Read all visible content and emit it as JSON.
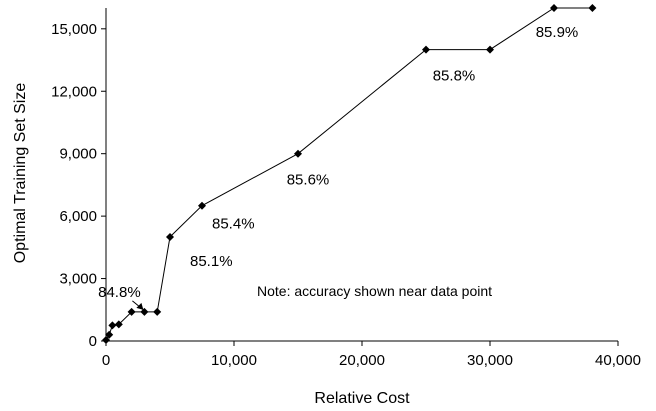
{
  "chart_data": {
    "type": "line",
    "xlabel": "Relative Cost",
    "ylabel": "Optimal Training Set Size",
    "xlim": [
      0,
      40000
    ],
    "ylim": [
      0,
      16000
    ],
    "x_ticks": [
      0,
      10000,
      20000,
      30000,
      40000
    ],
    "x_tick_labels": [
      "0",
      "10,000",
      "20,000",
      "30,000",
      "40,000"
    ],
    "y_ticks": [
      0,
      3000,
      6000,
      9000,
      12000,
      15000
    ],
    "y_tick_labels": [
      "0",
      "3,000",
      "6,000",
      "9,000",
      "12,000",
      "15,000"
    ],
    "grid": false,
    "legend": "none",
    "series": [
      {
        "marker": "diamond",
        "color": "#000000",
        "points": [
          {
            "x": 1,
            "y": 50
          },
          {
            "x": 250,
            "y": 300
          },
          {
            "x": 500,
            "y": 750
          },
          {
            "x": 1000,
            "y": 800
          },
          {
            "x": 2000,
            "y": 1400
          },
          {
            "x": 3000,
            "y": 1400
          },
          {
            "x": 4000,
            "y": 1400
          },
          {
            "x": 5000,
            "y": 5000
          },
          {
            "x": 7500,
            "y": 6500
          },
          {
            "x": 15000,
            "y": 9000
          },
          {
            "x": 25000,
            "y": 14000
          },
          {
            "x": 30000,
            "y": 14000
          },
          {
            "x": 35000,
            "y": 16000
          },
          {
            "x": 38000,
            "y": 16000
          }
        ]
      }
    ],
    "annotations": [
      {
        "text": "84.8%",
        "x": 3000,
        "y": 1400,
        "arrow": true
      },
      {
        "text": "85.1%",
        "x": 5000,
        "y": 5000
      },
      {
        "text": "85.4%",
        "x": 7500,
        "y": 6500
      },
      {
        "text": "85.6%",
        "x": 15000,
        "y": 9000
      },
      {
        "text": "85.8%",
        "x": 25000,
        "y": 14000
      },
      {
        "text": "85.9%",
        "x": 35000,
        "y": 16000
      }
    ],
    "note": "Note: accuracy shown near data point"
  }
}
